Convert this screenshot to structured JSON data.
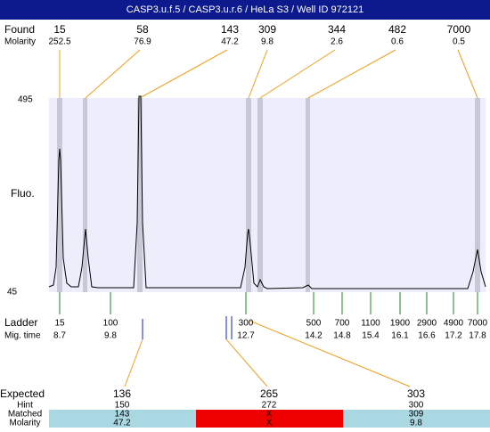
{
  "header": {
    "title": "CASP3.u.f.5 / CASP3.u.r.6 / HeLa S3 / Well ID 972121"
  },
  "found": {
    "label": "Found",
    "sublabel": "Molarity",
    "items": [
      {
        "size": "15",
        "molarity": "252.5"
      },
      {
        "size": "58",
        "molarity": "76.9"
      },
      {
        "size": "143",
        "molarity": "47.2"
      },
      {
        "size": "309",
        "molarity": "9.8"
      },
      {
        "size": "344",
        "molarity": "2.6"
      },
      {
        "size": "482",
        "molarity": "0.6"
      },
      {
        "size": "7000",
        "molarity": "0.5"
      }
    ]
  },
  "plot": {
    "ylabel": "Fluo.",
    "ymax": "495",
    "ymin": "45"
  },
  "ladder": {
    "label": "Ladder",
    "sublabel": "Mig. time",
    "items": [
      {
        "size": "15",
        "time": "8.7"
      },
      {
        "size": "100",
        "time": "9.8"
      },
      {
        "size": "300",
        "time": "12.7"
      },
      {
        "size": "500",
        "time": "14.2"
      },
      {
        "size": "700",
        "time": "14.8"
      },
      {
        "size": "1100",
        "time": "15.4"
      },
      {
        "size": "1900",
        "time": "16.1"
      },
      {
        "size": "2900",
        "time": "16.6"
      },
      {
        "size": "4900",
        "time": "17.2"
      },
      {
        "size": "7000",
        "time": "17.8"
      }
    ]
  },
  "expected": {
    "label": "Expected",
    "rows": [
      "Hint",
      "Matched",
      "Molarity"
    ],
    "columns": [
      {
        "expected": "136",
        "hint": "150",
        "matched": "143",
        "molarity": "47.2"
      },
      {
        "expected": "265",
        "hint": "272",
        "matched": "X",
        "molarity": "X"
      },
      {
        "expected": "303",
        "hint": "300",
        "matched": "309",
        "molarity": "9.8"
      }
    ]
  }
}
